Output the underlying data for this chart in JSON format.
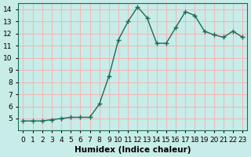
{
  "x": [
    0,
    1,
    2,
    3,
    4,
    5,
    6,
    7,
    8,
    9,
    10,
    11,
    12,
    13,
    14,
    15,
    16,
    17,
    18,
    19,
    20,
    21,
    22,
    23
  ],
  "y": [
    4.8,
    4.8,
    4.8,
    4.9,
    5.0,
    5.1,
    5.1,
    5.1,
    6.2,
    8.5,
    11.5,
    13.0,
    14.2,
    13.3,
    11.2,
    11.2,
    12.5,
    13.8,
    13.5,
    12.2,
    11.9,
    11.7,
    12.2,
    11.7
  ],
  "line_color": "#1a6b5a",
  "marker": "+",
  "marker_size": 4,
  "bg_color": "#c8ece8",
  "grid_color": "#f0b8b8",
  "xlabel": "Humidex (Indice chaleur)",
  "ylabel": "",
  "xlim": [
    -0.5,
    23.5
  ],
  "ylim": [
    4,
    14.5
  ],
  "yticks": [
    5,
    6,
    7,
    8,
    9,
    10,
    11,
    12,
    13,
    14
  ],
  "xticks": [
    0,
    1,
    2,
    3,
    4,
    5,
    6,
    7,
    8,
    9,
    10,
    11,
    12,
    13,
    14,
    15,
    16,
    17,
    18,
    19,
    20,
    21,
    22,
    23
  ],
  "tick_fontsize": 6.5,
  "xlabel_fontsize": 7.5
}
